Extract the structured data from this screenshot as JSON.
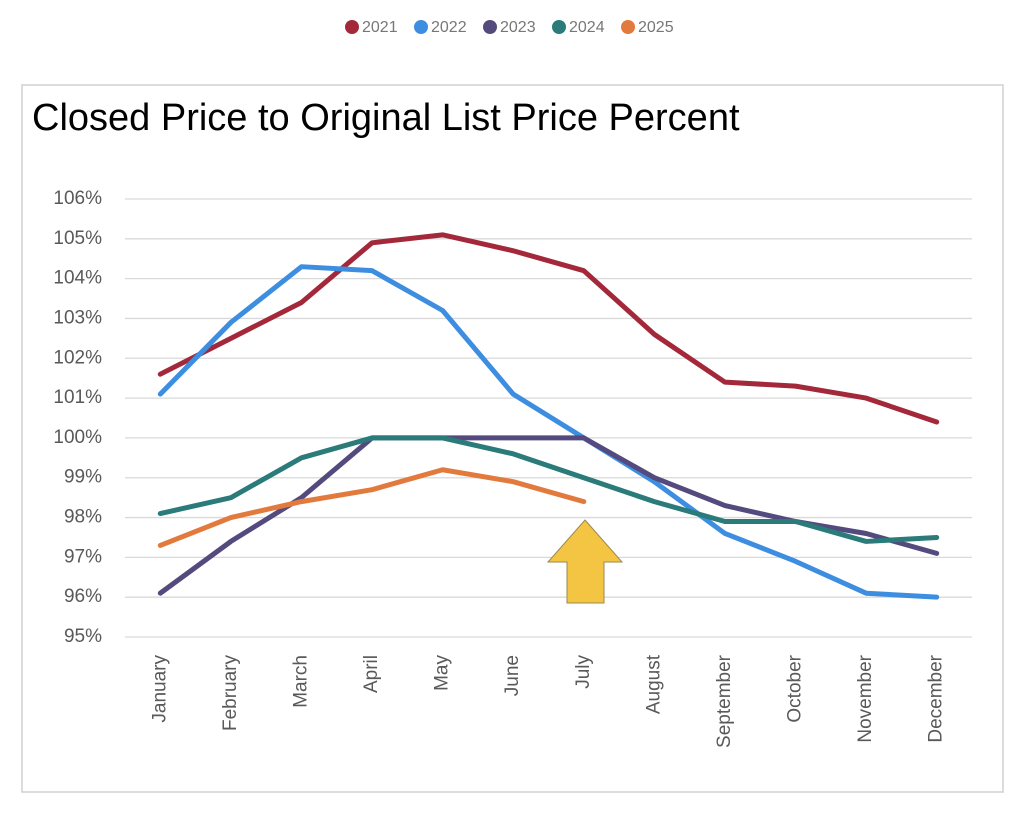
{
  "chart_data": {
    "type": "line",
    "title": "Closed Price to Original List Price Percent",
    "categories": [
      "January",
      "February",
      "March",
      "April",
      "May",
      "June",
      "July",
      "August",
      "September",
      "October",
      "November",
      "December"
    ],
    "series": [
      {
        "name": "2021",
        "color": "#a3293a",
        "values": [
          101.6,
          102.5,
          103.4,
          104.9,
          105.1,
          104.7,
          104.2,
          102.6,
          101.4,
          101.3,
          101.0,
          100.4
        ]
      },
      {
        "name": "2022",
        "color": "#3d8ee0",
        "values": [
          101.1,
          102.9,
          104.3,
          104.2,
          103.2,
          101.1,
          100.0,
          98.9,
          97.6,
          96.9,
          96.1,
          96.0
        ]
      },
      {
        "name": "2023",
        "color": "#544a7e",
        "values": [
          96.1,
          97.4,
          98.5,
          100.0,
          100.0,
          100.0,
          100.0,
          99.0,
          98.3,
          97.9,
          97.6,
          97.1
        ]
      },
      {
        "name": "2024",
        "color": "#2a7b7a",
        "values": [
          98.1,
          98.5,
          99.5,
          100.0,
          100.0,
          99.6,
          99.0,
          98.4,
          97.9,
          97.9,
          97.4,
          97.5
        ]
      },
      {
        "name": "2025",
        "color": "#e27a3e",
        "values": [
          97.3,
          98.0,
          98.4,
          98.7,
          99.2,
          98.9,
          98.4,
          null,
          null,
          null,
          null,
          null
        ]
      }
    ],
    "ylim": [
      95,
      106
    ],
    "yticks": [
      {
        "value": 95,
        "label": "95%"
      },
      {
        "value": 96,
        "label": "96%"
      },
      {
        "value": 97,
        "label": "97%"
      },
      {
        "value": 98,
        "label": "98%"
      },
      {
        "value": 99,
        "label": "99%"
      },
      {
        "value": 100,
        "label": "100%"
      },
      {
        "value": 101,
        "label": "101%"
      },
      {
        "value": 102,
        "label": "102%"
      },
      {
        "value": 103,
        "label": "103%"
      },
      {
        "value": 104,
        "label": "104%"
      },
      {
        "value": 105,
        "label": "105%"
      },
      {
        "value": 106,
        "label": "106%"
      }
    ],
    "grid": true,
    "legend": "top"
  }
}
